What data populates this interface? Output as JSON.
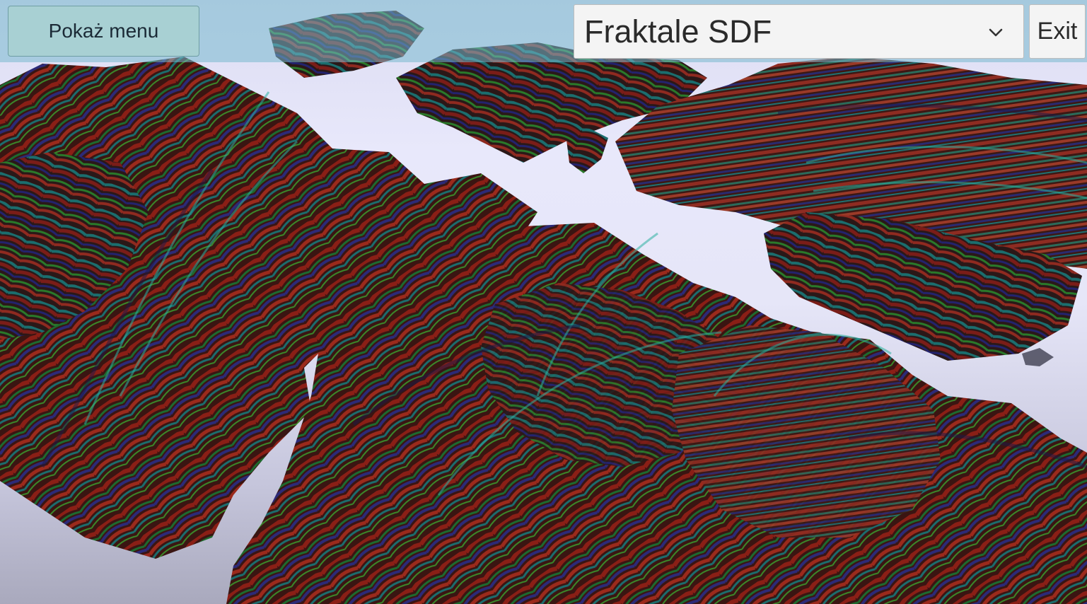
{
  "toolbar": {
    "show_menu_label": "Pokaż menu",
    "scene_select_value": "Fraktale SDF",
    "exit_label": "Exit"
  },
  "icons": {
    "dropdown": "chevron-down-icon"
  },
  "colors": {
    "toolbar_overlay": "#78b9cd",
    "menu_button_bg": "#a8d0d3",
    "select_bg": "#f4f4f4",
    "fractal_red": "#8a1f16",
    "fractal_green": "#1d6b2e",
    "fractal_teal": "#1b6e6e",
    "fractal_blue": "#2c2a78"
  }
}
